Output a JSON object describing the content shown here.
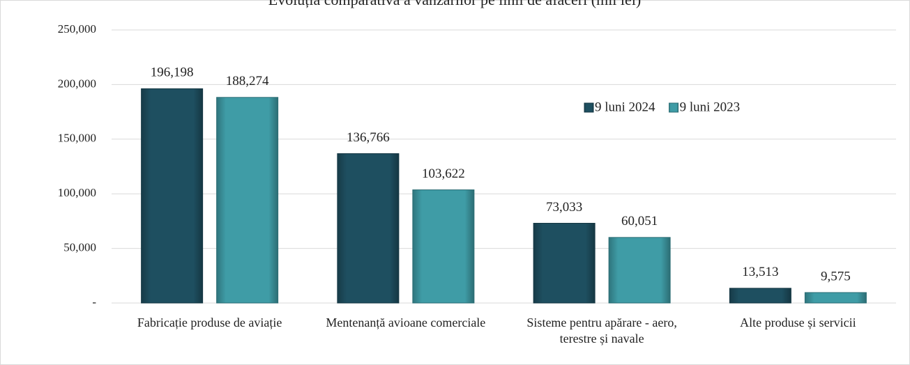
{
  "chart_data": {
    "type": "bar",
    "title": "Evoluția comparativă a vânzărilor pe linii de afaceri (mii lei)",
    "categories": [
      "Fabricație produse de aviație",
      "Mentenanță avioane comerciale",
      "Sisteme pentru apărare - aero, terestre și navale",
      "Alte produse și servicii"
    ],
    "series": [
      {
        "name": "9 luni 2024",
        "color": "#1e4f60",
        "values": [
          196198,
          136766,
          73033,
          13513
        ],
        "value_labels": [
          "196,198",
          "136,766",
          "73,033",
          "13,513"
        ]
      },
      {
        "name": "9 luni 2023",
        "color": "#3f9ca6",
        "values": [
          188274,
          103622,
          60051,
          9575
        ],
        "value_labels": [
          "188,274",
          "103,622",
          "60,051",
          "9,575"
        ]
      }
    ],
    "ylim": [
      0,
      250000
    ],
    "yticks": [
      {
        "value": 0,
        "label": "-"
      },
      {
        "value": 50000,
        "label": "50,000"
      },
      {
        "value": 100000,
        "label": "100,000"
      },
      {
        "value": 150000,
        "label": "150,000"
      },
      {
        "value": 200000,
        "label": "200,000"
      },
      {
        "value": 250000,
        "label": "250,000"
      }
    ],
    "grid": true,
    "legend": "top-right"
  }
}
